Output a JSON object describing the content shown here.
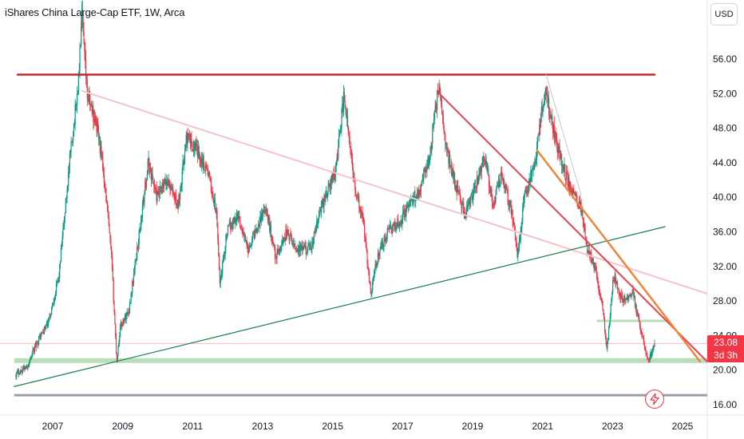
{
  "header": {
    "title": "iShares China Large-Cap ETF, 1W, Arca",
    "currency_button": "USD"
  },
  "price_badge": {
    "price": "23.08",
    "countdown": "3d 3h",
    "color": "#f23645"
  },
  "flash_icon": "lightning-icon",
  "chart_data": {
    "type": "candlestick",
    "title": "iShares China Large-Cap ETF, 1W, Arca",
    "currency": "USD",
    "y_ticks": [
      16,
      20,
      24,
      28,
      32,
      36,
      40,
      44,
      48,
      52,
      56
    ],
    "y_tick_labels": [
      "16.00",
      "20.00",
      "24.00",
      "28.00",
      "32.00",
      "36.00",
      "40.00",
      "44.00",
      "48.00",
      "52.00",
      "56.00"
    ],
    "x_tick_labels": [
      "2007",
      "2009",
      "2011",
      "2013",
      "2015",
      "2017",
      "2019",
      "2021",
      "2023",
      "2025"
    ],
    "xlim": [
      2005.9,
      2026.4
    ],
    "ylim": [
      15.1,
      61.2
    ],
    "last_price": 23.08,
    "colors": {
      "up": "#089981",
      "down": "#f23645"
    },
    "price_path": [
      [
        2005.95,
        19.5
      ],
      [
        2006.3,
        20.5
      ],
      [
        2006.6,
        23.5
      ],
      [
        2006.9,
        25.5
      ],
      [
        2007.2,
        31
      ],
      [
        2007.5,
        44
      ],
      [
        2007.75,
        53
      ],
      [
        2007.85,
        61
      ],
      [
        2008.0,
        52
      ],
      [
        2008.15,
        50
      ],
      [
        2008.3,
        48
      ],
      [
        2008.5,
        42
      ],
      [
        2008.7,
        33
      ],
      [
        2008.85,
        21
      ],
      [
        2008.95,
        25
      ],
      [
        2009.2,
        27
      ],
      [
        2009.5,
        36
      ],
      [
        2009.75,
        44
      ],
      [
        2010.0,
        40
      ],
      [
        2010.3,
        42
      ],
      [
        2010.6,
        39
      ],
      [
        2010.85,
        47
      ],
      [
        2011.2,
        45
      ],
      [
        2011.45,
        43
      ],
      [
        2011.7,
        38
      ],
      [
        2011.8,
        30
      ],
      [
        2012.0,
        36
      ],
      [
        2012.3,
        38
      ],
      [
        2012.6,
        34
      ],
      [
        2012.9,
        37
      ],
      [
        2013.1,
        39
      ],
      [
        2013.4,
        33
      ],
      [
        2013.7,
        36
      ],
      [
        2014.0,
        34
      ],
      [
        2014.4,
        34
      ],
      [
        2014.7,
        39
      ],
      [
        2014.9,
        41
      ],
      [
        2015.1,
        43
      ],
      [
        2015.35,
        52
      ],
      [
        2015.5,
        46
      ],
      [
        2015.7,
        40
      ],
      [
        2015.9,
        37
      ],
      [
        2016.1,
        29
      ],
      [
        2016.3,
        33
      ],
      [
        2016.6,
        36
      ],
      [
        2016.9,
        37
      ],
      [
        2017.2,
        39
      ],
      [
        2017.5,
        41
      ],
      [
        2017.8,
        45
      ],
      [
        2018.05,
        53
      ],
      [
        2018.25,
        46
      ],
      [
        2018.5,
        42
      ],
      [
        2018.8,
        38
      ],
      [
        2019.1,
        41
      ],
      [
        2019.35,
        45
      ],
      [
        2019.6,
        39
      ],
      [
        2019.85,
        43
      ],
      [
        2020.2,
        37
      ],
      [
        2020.3,
        33
      ],
      [
        2020.5,
        40
      ],
      [
        2020.8,
        44
      ],
      [
        2021.1,
        53
      ],
      [
        2021.25,
        49
      ],
      [
        2021.5,
        45
      ],
      [
        2021.8,
        41
      ],
      [
        2022.1,
        39
      ],
      [
        2022.3,
        34
      ],
      [
        2022.5,
        32
      ],
      [
        2022.75,
        27
      ],
      [
        2022.85,
        22
      ],
      [
        2023.05,
        31
      ],
      [
        2023.3,
        28
      ],
      [
        2023.6,
        29
      ],
      [
        2023.85,
        24
      ],
      [
        2024.05,
        21
      ],
      [
        2024.2,
        23.08
      ]
    ],
    "trendlines": [
      {
        "color": "#c2262f",
        "width": 2.5,
        "points": [
          [
            2006.0,
            54.2
          ],
          [
            2024.2,
            54.2
          ]
        ]
      },
      {
        "color": "#f7c3ca",
        "width": 2,
        "points": [
          [
            2007.85,
            52.3
          ],
          [
            2026.2,
            28.2
          ]
        ]
      },
      {
        "color": "#1e7d4c",
        "width": 1.2,
        "points": [
          [
            2005.9,
            18.1
          ],
          [
            2024.5,
            36.6
          ]
        ]
      },
      {
        "color": "#e8434f",
        "width": 2,
        "points": [
          [
            2018.05,
            52.0
          ],
          [
            2025.7,
            21.0
          ]
        ]
      },
      {
        "color": "#f0853a",
        "width": 2.5,
        "points": [
          [
            2020.85,
            45.4
          ],
          [
            2025.5,
            21.0
          ]
        ]
      },
      {
        "color": "#c8c8c8",
        "width": 1,
        "points": [
          [
            2021.1,
            54.2
          ],
          [
            2022.1,
            40.3
          ]
        ]
      }
    ],
    "levels": [
      {
        "color": "#b9dfb8",
        "width": 6,
        "price": 21.1,
        "from": 2005.9,
        "to": 2026.4
      },
      {
        "color": "#9c9ca8",
        "width": 3,
        "price": 17.1,
        "from": 2005.9,
        "to": 2026.4
      },
      {
        "color": "#b9dfb8",
        "width": 3,
        "price": 25.7,
        "from": 2022.55,
        "to": 2024.55
      }
    ]
  }
}
